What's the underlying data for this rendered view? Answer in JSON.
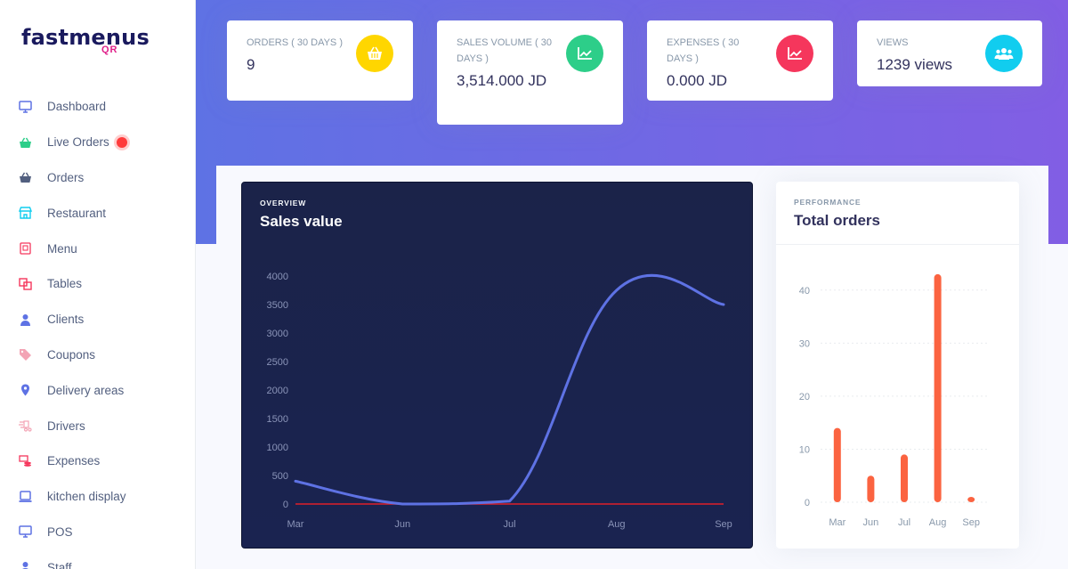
{
  "brand": {
    "name": "fastmenus",
    "sub": "QR"
  },
  "sidebar": {
    "items": [
      {
        "label": "Dashboard",
        "icon": "monitor-icon",
        "color": "#5e72e4"
      },
      {
        "label": "Live Orders",
        "icon": "basket-icon",
        "color": "#2dce89",
        "badge": true
      },
      {
        "label": "Orders",
        "icon": "basket-icon",
        "color": "#525f7f"
      },
      {
        "label": "Restaurant",
        "icon": "shop-icon",
        "color": "#11cdef"
      },
      {
        "label": "Menu",
        "icon": "menu-book-icon",
        "color": "#f5365c"
      },
      {
        "label": "Tables",
        "icon": "tables-icon",
        "color": "#f5365c"
      },
      {
        "label": "Clients",
        "icon": "user-icon",
        "color": "#5e72e4"
      },
      {
        "label": "Coupons",
        "icon": "tag-icon",
        "color": "#f3a4b5"
      },
      {
        "label": "Delivery areas",
        "icon": "map-pin-icon",
        "color": "#5e72e4"
      },
      {
        "label": "Drivers",
        "icon": "delivery-icon",
        "color": "#f3a4b5"
      },
      {
        "label": "Expenses",
        "icon": "money-icon",
        "color": "#f5365c"
      },
      {
        "label": "kitchen display",
        "icon": "laptop-icon",
        "color": "#5e72e4"
      },
      {
        "label": "POS",
        "icon": "monitor-icon",
        "color": "#5e72e4"
      },
      {
        "label": "Staff",
        "icon": "user-icon",
        "color": "#5e72e4"
      }
    ]
  },
  "stats": [
    {
      "title": "ORDERS ( 30 DAYS )",
      "value": "9",
      "icon": "basket-icon",
      "color": "#ffd600"
    },
    {
      "title": "SALES VOLUME ( 30 DAYS )",
      "value": "3,514.000 JD",
      "icon": "chart-line-icon",
      "color": "#2dce89"
    },
    {
      "title": "EXPENSES ( 30 DAYS )",
      "value": "0.000 JD",
      "icon": "chart-line-icon",
      "color": "#f5365c"
    },
    {
      "title": "VIEWS",
      "value": "1239 views",
      "icon": "users-icon",
      "color": "#11cdef"
    }
  ],
  "overview": {
    "kicker": "OVERVIEW",
    "title": "Sales value"
  },
  "performance": {
    "kicker": "PERFORMANCE",
    "title": "Total orders"
  },
  "colors": {
    "line": "#5e72e4",
    "zero_line": "#e0202a",
    "bar": "#fb6340"
  },
  "chart_data": [
    {
      "type": "line",
      "title": "Sales value",
      "categories": [
        "Mar",
        "Jun",
        "Jul",
        "Aug",
        "Sep"
      ],
      "series": [
        {
          "values": [
            400,
            0,
            50,
            3750,
            3500
          ]
        }
      ],
      "yticks": [
        0,
        500,
        1000,
        1500,
        2000,
        2500,
        3000,
        3500,
        4000
      ],
      "ylim": [
        0,
        4000
      ],
      "grid": false
    },
    {
      "type": "bar",
      "title": "Total orders",
      "categories": [
        "Mar",
        "Jun",
        "Jul",
        "Aug",
        "Sep"
      ],
      "values": [
        14,
        5,
        9,
        43,
        1
      ],
      "yticks": [
        0,
        10,
        20,
        30,
        40
      ],
      "ylim": [
        0,
        45
      ],
      "grid": true
    }
  ]
}
